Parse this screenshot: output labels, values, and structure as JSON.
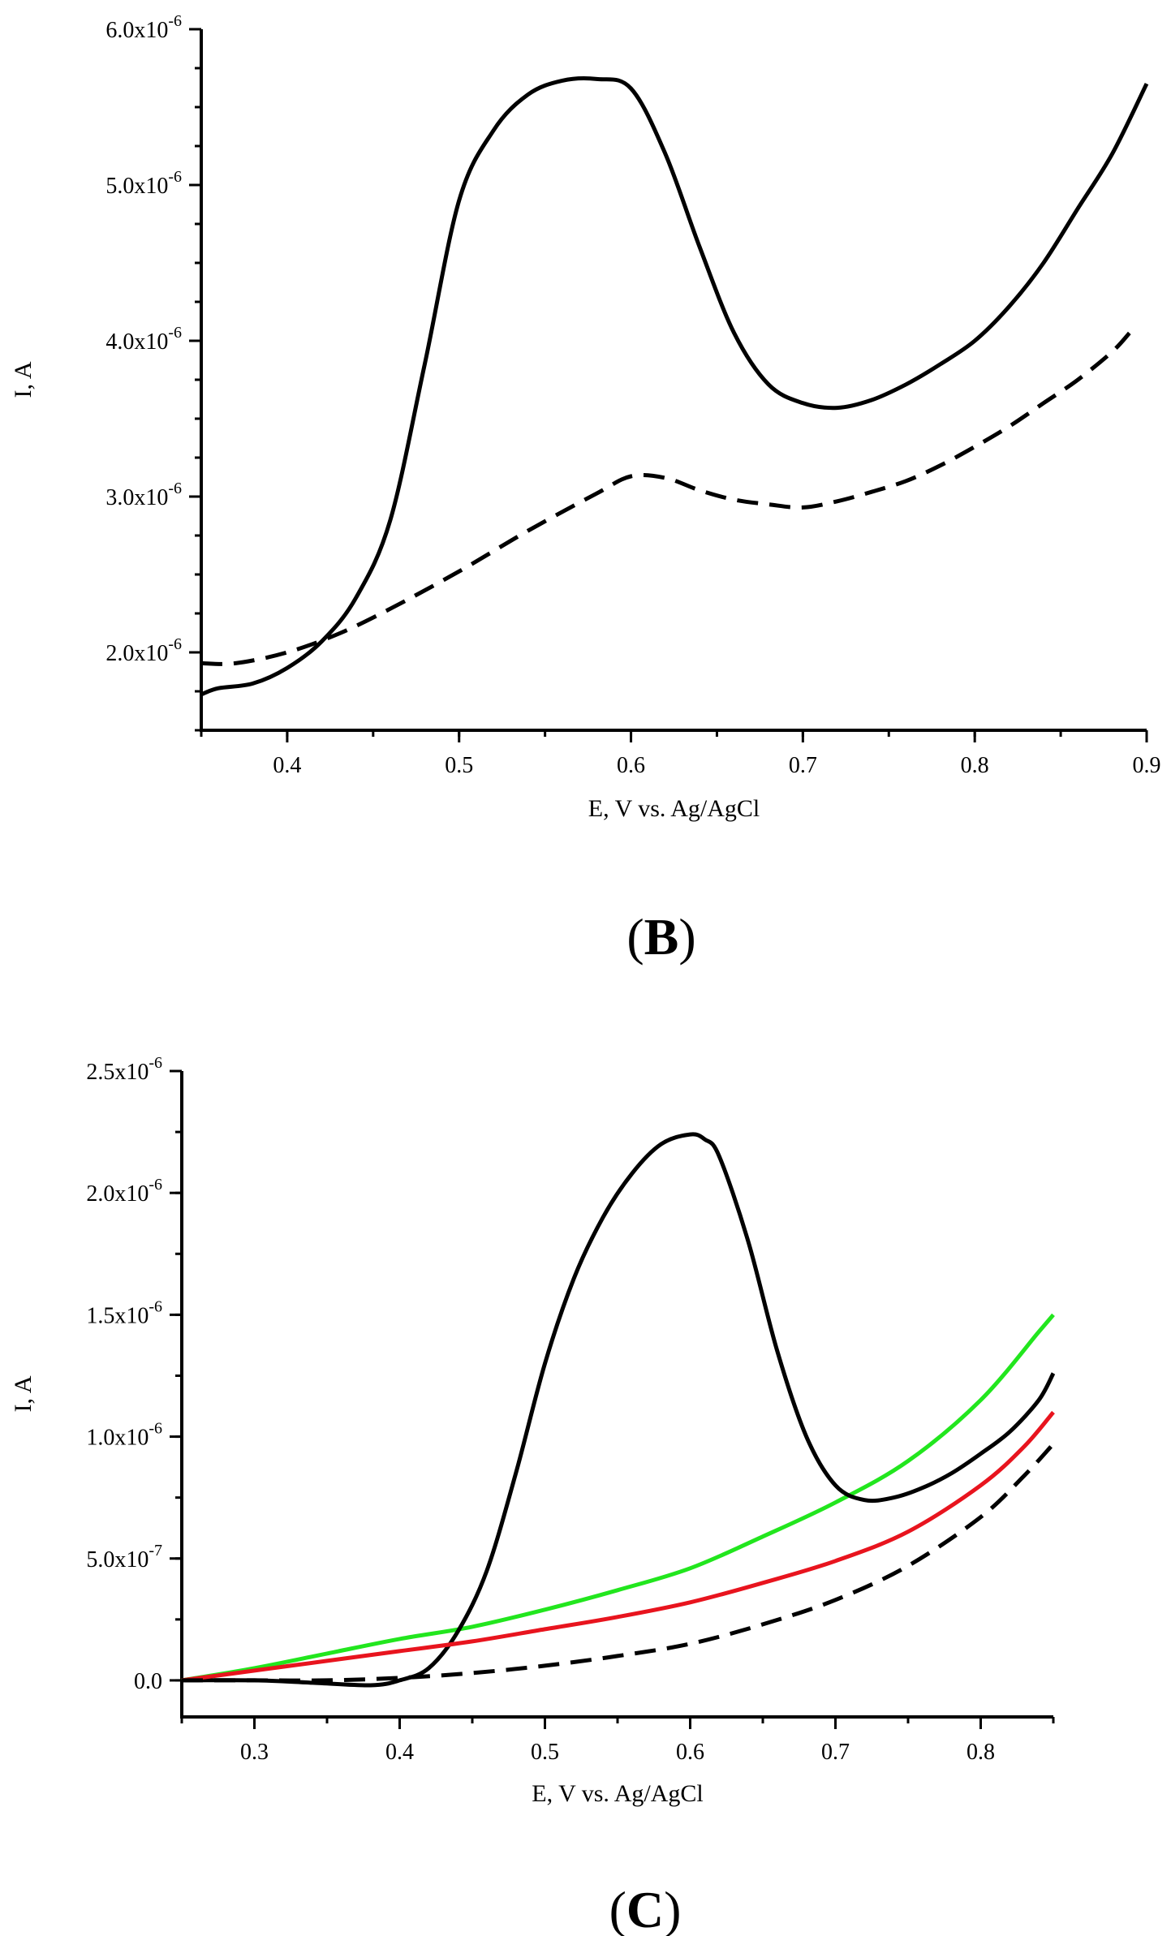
{
  "figure": {
    "panels": [
      {
        "id": "B",
        "label": "B"
      },
      {
        "id": "C",
        "label": "C"
      }
    ]
  },
  "chart_data": [
    {
      "type": "line",
      "panel": "B",
      "title": "",
      "xlabel": "E, V vs. Ag/AgCl",
      "ylabel": "I, A",
      "xlim": [
        0.35,
        0.9
      ],
      "ylim": [
        1.5e-06,
        6e-06
      ],
      "x_ticks": [
        {
          "value": 0.4,
          "label": "0.4"
        },
        {
          "value": 0.5,
          "label": "0.5"
        },
        {
          "value": 0.6,
          "label": "0.6"
        },
        {
          "value": 0.7,
          "label": "0.7"
        },
        {
          "value": 0.8,
          "label": "0.8"
        },
        {
          "value": 0.9,
          "label": "0.9"
        }
      ],
      "y_ticks": [
        {
          "value": 2e-06,
          "mantissa": "2.0x10",
          "exponent": "-6"
        },
        {
          "value": 3e-06,
          "mantissa": "3.0x10",
          "exponent": "-6"
        },
        {
          "value": 4e-06,
          "mantissa": "4.0x10",
          "exponent": "-6"
        },
        {
          "value": 5e-06,
          "mantissa": "5.0x10",
          "exponent": "-6"
        },
        {
          "value": 6e-06,
          "mantissa": "6.0x10",
          "exponent": "-6"
        }
      ],
      "x_minor_step": 0.05,
      "y_minor_step": 2.5e-07,
      "grid": false,
      "series": [
        {
          "name": "solid",
          "color": "#000000",
          "dash": "solid",
          "x": [
            0.35,
            0.36,
            0.38,
            0.4,
            0.42,
            0.44,
            0.46,
            0.48,
            0.5,
            0.52,
            0.54,
            0.56,
            0.58,
            0.6,
            0.62,
            0.64,
            0.66,
            0.68,
            0.7,
            0.72,
            0.74,
            0.76,
            0.78,
            0.8,
            0.82,
            0.84,
            0.86,
            0.88,
            0.9
          ],
          "y": [
            1.73e-06,
            1.77e-06,
            1.8e-06,
            1.9e-06,
            2.07e-06,
            2.35e-06,
            2.85e-06,
            3.85e-06,
            4.9e-06,
            5.35e-06,
            5.58e-06,
            5.67e-06,
            5.68e-06,
            5.62e-06,
            5.2e-06,
            4.6e-06,
            4.05e-06,
            3.72e-06,
            3.6e-06,
            3.57e-06,
            3.62e-06,
            3.72e-06,
            3.85e-06,
            4e-06,
            4.22e-06,
            4.5e-06,
            4.85e-06,
            5.2e-06,
            5.65e-06
          ]
        },
        {
          "name": "dashed",
          "color": "#000000",
          "dash": "dashed",
          "x": [
            0.35,
            0.37,
            0.4,
            0.43,
            0.46,
            0.5,
            0.54,
            0.58,
            0.6,
            0.62,
            0.64,
            0.66,
            0.68,
            0.7,
            0.72,
            0.74,
            0.76,
            0.78,
            0.8,
            0.82,
            0.84,
            0.86,
            0.88,
            0.89
          ],
          "y": [
            1.93e-06,
            1.93e-06,
            2e-06,
            2.12e-06,
            2.28e-06,
            2.52e-06,
            2.78e-06,
            3.02e-06,
            3.13e-06,
            3.12e-06,
            3.04e-06,
            2.98e-06,
            2.95e-06,
            2.93e-06,
            2.97e-06,
            3.03e-06,
            3.1e-06,
            3.2e-06,
            3.32e-06,
            3.45e-06,
            3.6e-06,
            3.75e-06,
            3.93e-06,
            4.05e-06
          ]
        }
      ]
    },
    {
      "type": "line",
      "panel": "C",
      "title": "",
      "xlabel": "E, V vs. Ag/AgCl",
      "ylabel": "I, A",
      "xlim": [
        0.25,
        0.85
      ],
      "ylim": [
        -1.5e-07,
        2.5e-06
      ],
      "x_ticks": [
        {
          "value": 0.3,
          "label": "0.3"
        },
        {
          "value": 0.4,
          "label": "0.4"
        },
        {
          "value": 0.5,
          "label": "0.5"
        },
        {
          "value": 0.6,
          "label": "0.6"
        },
        {
          "value": 0.7,
          "label": "0.7"
        },
        {
          "value": 0.8,
          "label": "0.8"
        }
      ],
      "y_ticks": [
        {
          "value": 0,
          "mantissa": "0.0",
          "exponent": ""
        },
        {
          "value": 5e-07,
          "mantissa": "5.0x10",
          "exponent": "-7"
        },
        {
          "value": 1e-06,
          "mantissa": "1.0x10",
          "exponent": "-6"
        },
        {
          "value": 1.5e-06,
          "mantissa": "1.5x10",
          "exponent": "-6"
        },
        {
          "value": 2e-06,
          "mantissa": "2.0x10",
          "exponent": "-6"
        },
        {
          "value": 2.5e-06,
          "mantissa": "2.5x10",
          "exponent": "-6"
        }
      ],
      "x_minor_step": 0.05,
      "y_minor_step": 2.5e-07,
      "grid": false,
      "series": [
        {
          "name": "green",
          "color": "#22e61e",
          "dash": "solid",
          "x": [
            0.25,
            0.3,
            0.35,
            0.4,
            0.45,
            0.5,
            0.55,
            0.6,
            0.65,
            0.7,
            0.75,
            0.8,
            0.84,
            0.85
          ],
          "y": [
            0.0,
            5e-08,
            1.1e-07,
            1.7e-07,
            2.2e-07,
            2.9e-07,
            3.7e-07,
            4.6e-07,
            5.9e-07,
            7.3e-07,
            9e-07,
            1.15e-06,
            1.43e-06,
            1.5e-06
          ]
        },
        {
          "name": "black",
          "color": "#000000",
          "dash": "solid",
          "x": [
            0.25,
            0.3,
            0.34,
            0.38,
            0.4,
            0.42,
            0.44,
            0.46,
            0.48,
            0.5,
            0.52,
            0.54,
            0.56,
            0.58,
            0.6,
            0.61,
            0.62,
            0.64,
            0.66,
            0.68,
            0.7,
            0.72,
            0.74,
            0.76,
            0.78,
            0.8,
            0.82,
            0.84,
            0.85
          ],
          "y": [
            0.0,
            0.0,
            -1e-08,
            -2e-08,
            0.0,
            5e-08,
            2e-07,
            4.5e-07,
            8.5e-07,
            1.3e-06,
            1.65e-06,
            1.9e-06,
            2.08e-06,
            2.2e-06,
            2.24e-06,
            2.22e-06,
            2.15e-06,
            1.8e-06,
            1.35e-06,
            1e-06,
            8e-07,
            7.4e-07,
            7.5e-07,
            7.9e-07,
            8.5e-07,
            9.3e-07,
            1.02e-06,
            1.15e-06,
            1.26e-06
          ]
        },
        {
          "name": "red",
          "color": "#e8141e",
          "dash": "solid",
          "x": [
            0.25,
            0.3,
            0.35,
            0.4,
            0.45,
            0.5,
            0.55,
            0.6,
            0.65,
            0.7,
            0.75,
            0.8,
            0.83,
            0.85
          ],
          "y": [
            0.0,
            4e-08,
            8e-08,
            1.2e-07,
            1.6e-07,
            2.1e-07,
            2.6e-07,
            3.2e-07,
            4e-07,
            4.9e-07,
            6.1e-07,
            8e-07,
            9.6e-07,
            1.1e-06
          ]
        },
        {
          "name": "dashed",
          "color": "#000000",
          "dash": "dashed",
          "x": [
            0.25,
            0.3,
            0.35,
            0.4,
            0.45,
            0.5,
            0.55,
            0.6,
            0.65,
            0.7,
            0.75,
            0.8,
            0.83,
            0.85
          ],
          "y": [
            0.0,
            0.0,
            0.0,
            1e-08,
            3e-08,
            6e-08,
            1e-07,
            1.5e-07,
            2.3e-07,
            3.3e-07,
            4.7e-07,
            6.7e-07,
            8.4e-07,
            9.7e-07
          ]
        }
      ]
    }
  ]
}
